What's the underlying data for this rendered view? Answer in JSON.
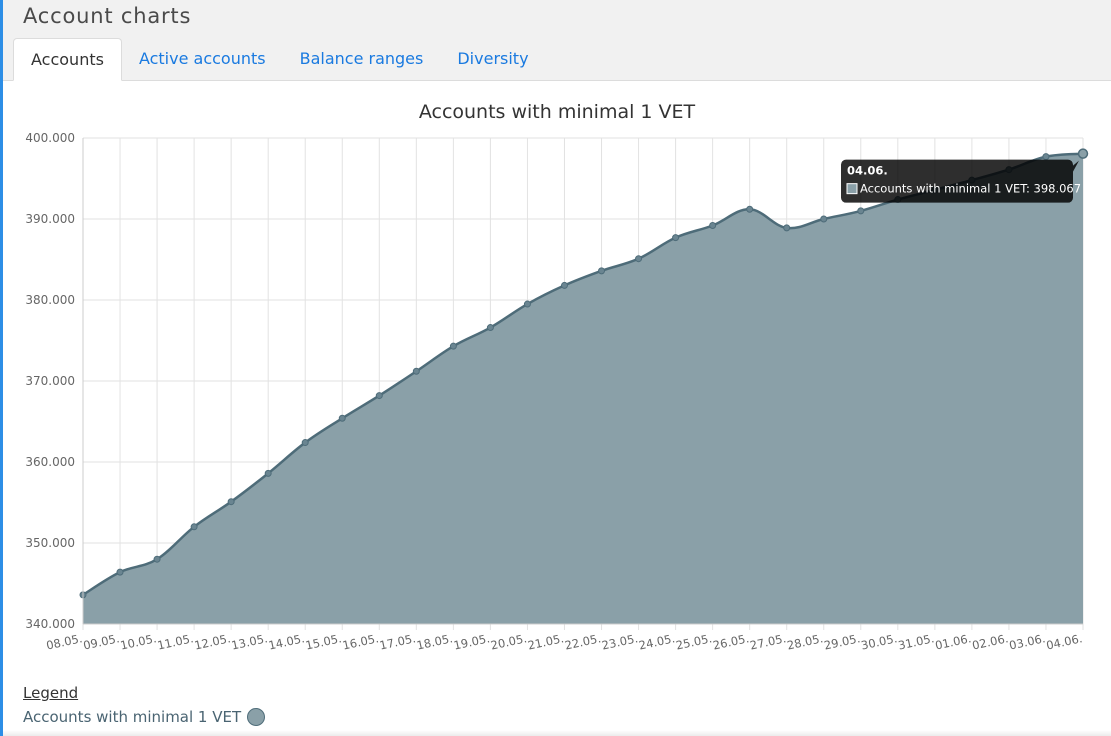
{
  "header": {
    "title": "Account charts"
  },
  "tabs": [
    {
      "label": "Accounts",
      "active": true
    },
    {
      "label": "Active accounts",
      "active": false
    },
    {
      "label": "Balance ranges",
      "active": false
    },
    {
      "label": "Diversity",
      "active": false
    }
  ],
  "chart_data": {
    "type": "area",
    "title": "Accounts with minimal 1 VET",
    "xlabel": "",
    "ylabel": "",
    "categories": [
      "08.05.",
      "09.05.",
      "10.05.",
      "11.05.",
      "12.05.",
      "13.05.",
      "14.05.",
      "15.05.",
      "16.05.",
      "17.05.",
      "18.05.",
      "19.05.",
      "20.05.",
      "21.05.",
      "22.05.",
      "23.05.",
      "24.05.",
      "25.05.",
      "26.05.",
      "27.05.",
      "28.05.",
      "29.05.",
      "30.05.",
      "31.05.",
      "01.06.",
      "02.06.",
      "03.06.",
      "04.06."
    ],
    "series": [
      {
        "name": "Accounts with minimal 1 VET",
        "values": [
          343.6,
          346.4,
          348.0,
          352.0,
          355.1,
          358.6,
          362.4,
          365.4,
          368.2,
          371.2,
          374.3,
          376.6,
          379.5,
          381.8,
          383.6,
          385.1,
          387.7,
          389.2,
          391.2,
          388.9,
          390.0,
          391.0,
          392.4,
          393.6,
          394.8,
          396.1,
          397.7,
          398.067
        ]
      }
    ],
    "ylim": [
      340,
      400
    ],
    "yticks": [
      340,
      350,
      360,
      370,
      380,
      390,
      400
    ],
    "ytick_labels": [
      "340.000",
      "350.000",
      "360.000",
      "370.000",
      "380.000",
      "390.000",
      "400.000"
    ],
    "grid": true,
    "fill_color": "#8aa0a8",
    "line_color": "#4e6c79",
    "tooltip": {
      "title": "04.06.",
      "label": "Accounts with minimal 1 VET: 398.067",
      "index": 27
    }
  },
  "legend": {
    "title": "Legend",
    "items": [
      {
        "label": "Accounts with minimal 1 VET",
        "color": "#8aa0a8"
      }
    ]
  }
}
